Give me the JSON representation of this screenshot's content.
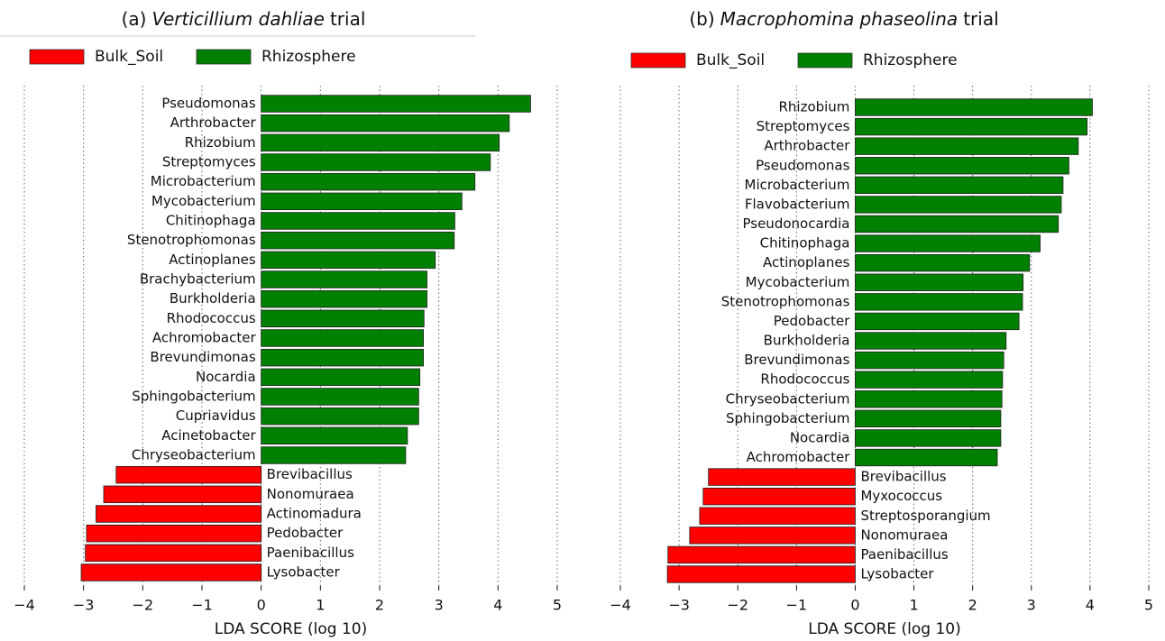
{
  "chart_data": [
    {
      "type": "bar",
      "orientation": "horizontal",
      "title": [
        "(a)",
        "Verticillium dahliae",
        "trial"
      ],
      "x_label": "LDA SCORE (log 10)",
      "xlim": [
        -4,
        5
      ],
      "xticks": [
        {
          "value": -4,
          "label": "−4"
        },
        {
          "value": -3,
          "label": "−3"
        },
        {
          "value": -2,
          "label": "−2"
        },
        {
          "value": -1,
          "label": "−1"
        },
        0,
        1,
        2,
        3,
        4,
        5
      ],
      "grid": true,
      "categories": [
        "Pseudomonas",
        "Arthrobacter",
        "Rhizobium",
        "Streptomyces",
        "Microbacterium",
        "Mycobacterium",
        "Chitinophaga",
        "Stenotrophomonas",
        "Actinoplanes",
        "Brachybacterium",
        "Burkholderia",
        "Rhodococcus",
        "Achromobacter",
        "Brevundimonas",
        "Nocardia",
        "Sphingobacterium",
        "Cupriavidus",
        "Acinetobacter",
        "Chryseobacterium",
        "Brevibacillus",
        "Nonomuraea",
        "Actinomadura",
        "Pedobacter",
        "Paenibacillus",
        "Lysobacter"
      ],
      "series": [
        {
          "name": "Bulk_Soil",
          "color": "#ff0000",
          "values": [
            null,
            null,
            null,
            null,
            null,
            null,
            null,
            null,
            null,
            null,
            null,
            null,
            null,
            null,
            null,
            null,
            null,
            null,
            null,
            -2.45,
            -2.66,
            -2.79,
            -2.95,
            -2.97,
            -3.04
          ]
        },
        {
          "name": "Rhizosphere",
          "color": "#008000",
          "values": [
            4.55,
            4.19,
            4.02,
            3.87,
            3.61,
            3.39,
            3.27,
            3.26,
            2.94,
            2.8,
            2.8,
            2.75,
            2.74,
            2.74,
            2.68,
            2.66,
            2.66,
            2.47,
            2.44,
            null,
            null,
            null,
            null,
            null,
            null
          ]
        }
      ]
    },
    {
      "type": "bar",
      "orientation": "horizontal",
      "title": [
        "(b)",
        "Macrophomina phaseolina",
        "trial"
      ],
      "x_label": "LDA SCORE (log 10)",
      "xlim": [
        -4,
        5
      ],
      "xticks": [
        {
          "value": -4,
          "label": "−4"
        },
        {
          "value": -3,
          "label": "−3"
        },
        {
          "value": -2,
          "label": "−2"
        },
        {
          "value": -1,
          "label": "−1"
        },
        0,
        1,
        2,
        3,
        4,
        5
      ],
      "grid": true,
      "categories": [
        "Rhizobium",
        "Streptomyces",
        "Arthrobacter",
        "Pseudomonas",
        "Microbacterium",
        "Flavobacterium",
        "Pseudonocardia",
        "Chitinophaga",
        "Actinoplanes",
        "Mycobacterium",
        "Stenotrophomonas",
        "Pedobacter",
        "Burkholderia",
        "Brevundimonas",
        "Rhodococcus",
        "Chryseobacterium",
        "Sphingobacterium",
        "Nocardia",
        "Achromobacter",
        "Brevibacillus",
        "Myxococcus",
        "Streptosporangium",
        "Nonomuraea",
        "Paenibacillus",
        "Lysobacter"
      ],
      "series": [
        {
          "name": "Bulk_Soil",
          "color": "#ff0000",
          "values": [
            null,
            null,
            null,
            null,
            null,
            null,
            null,
            null,
            null,
            null,
            null,
            null,
            null,
            null,
            null,
            null,
            null,
            null,
            null,
            -2.5,
            -2.59,
            -2.65,
            -2.82,
            -3.19,
            -3.2
          ]
        },
        {
          "name": "Rhizosphere",
          "color": "#008000",
          "values": [
            4.04,
            3.95,
            3.8,
            3.64,
            3.54,
            3.51,
            3.46,
            3.15,
            2.97,
            2.86,
            2.85,
            2.79,
            2.57,
            2.53,
            2.51,
            2.5,
            2.48,
            2.48,
            2.42,
            null,
            null,
            null,
            null,
            null,
            null
          ]
        }
      ]
    }
  ]
}
